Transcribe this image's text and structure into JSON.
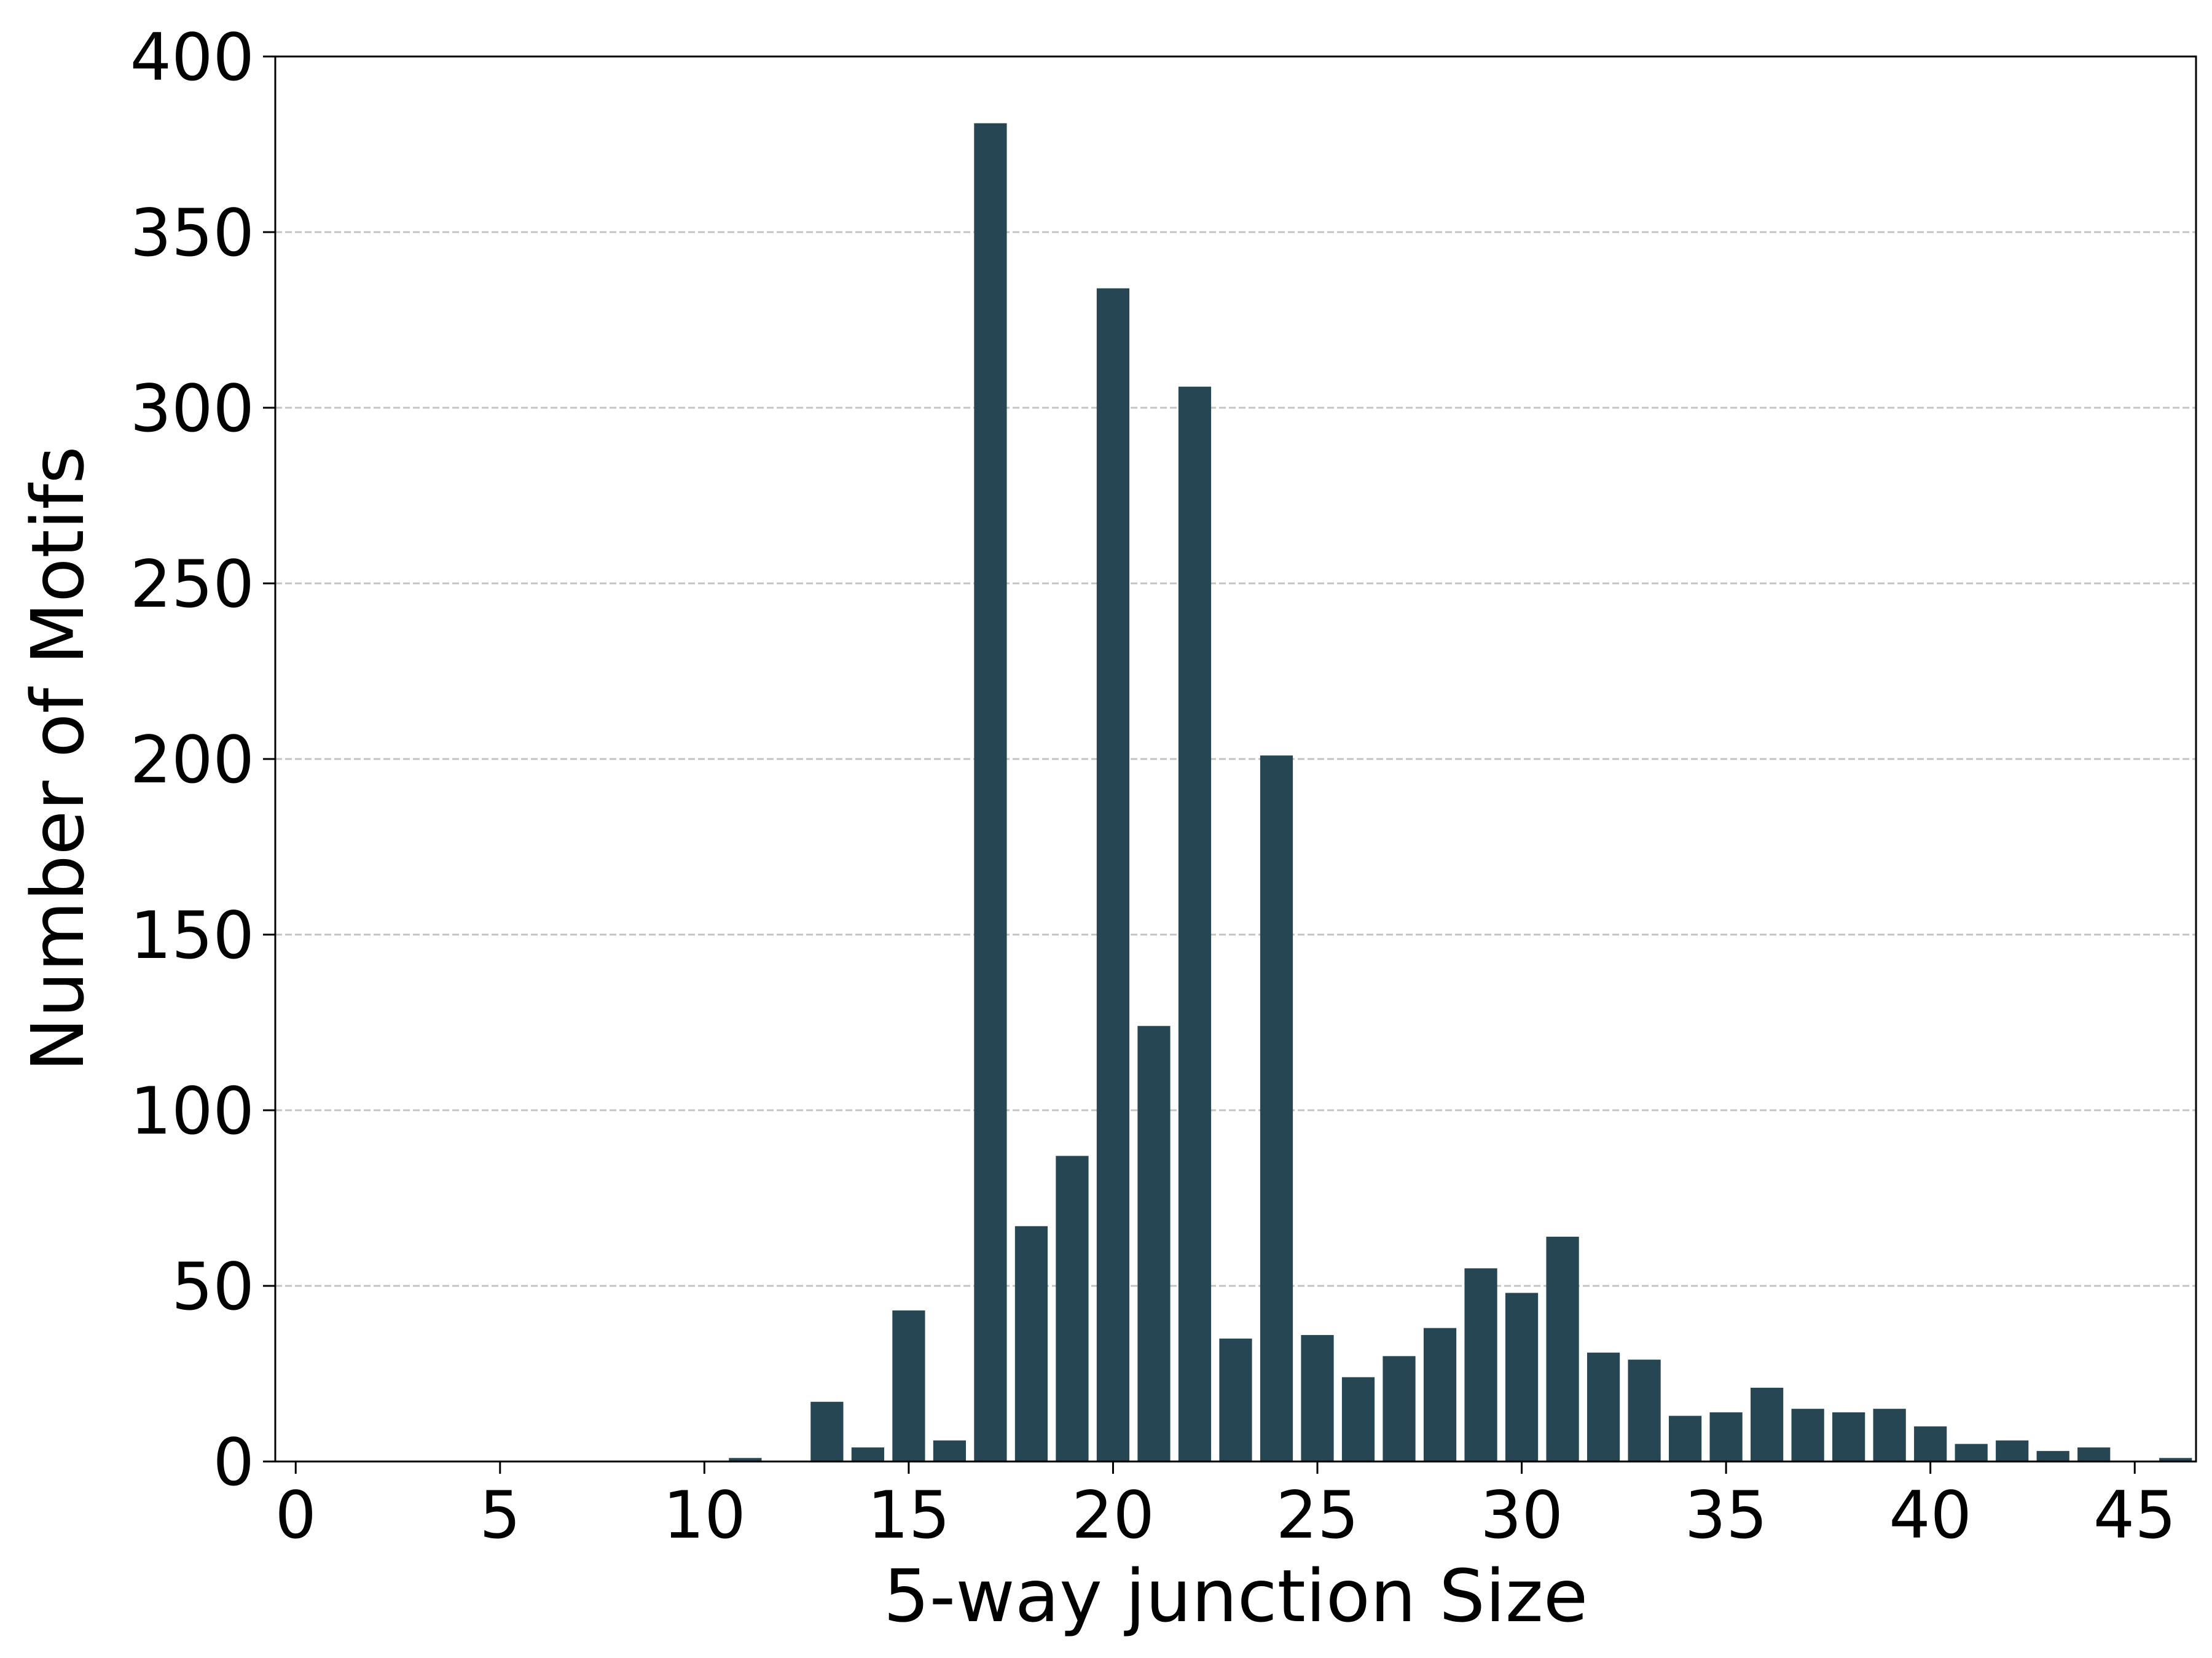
{
  "chart_data": {
    "type": "bar",
    "xlabel": "5-way junction Size",
    "ylabel": "Number of Motifs",
    "xlim": [
      -0.5,
      46.5
    ],
    "ylim": [
      0,
      400
    ],
    "x_ticks": [
      0,
      5,
      10,
      15,
      20,
      25,
      30,
      35,
      40,
      45
    ],
    "y_ticks": [
      0,
      50,
      100,
      150,
      200,
      250,
      300,
      350,
      400
    ],
    "grid": "y-dashed",
    "bar_color": "#264653",
    "x": [
      11,
      13,
      14,
      15,
      16,
      17,
      18,
      19,
      20,
      21,
      22,
      23,
      24,
      25,
      26,
      27,
      28,
      29,
      30,
      31,
      32,
      33,
      34,
      35,
      36,
      37,
      38,
      39,
      40,
      41,
      42,
      43,
      44,
      46
    ],
    "values": [
      1,
      17,
      4,
      43,
      6,
      381,
      67,
      87,
      334,
      124,
      306,
      35,
      201,
      36,
      24,
      30,
      38,
      55,
      48,
      64,
      31,
      29,
      13,
      14,
      21,
      15,
      14,
      15,
      10,
      5,
      6,
      3,
      4,
      1
    ]
  }
}
